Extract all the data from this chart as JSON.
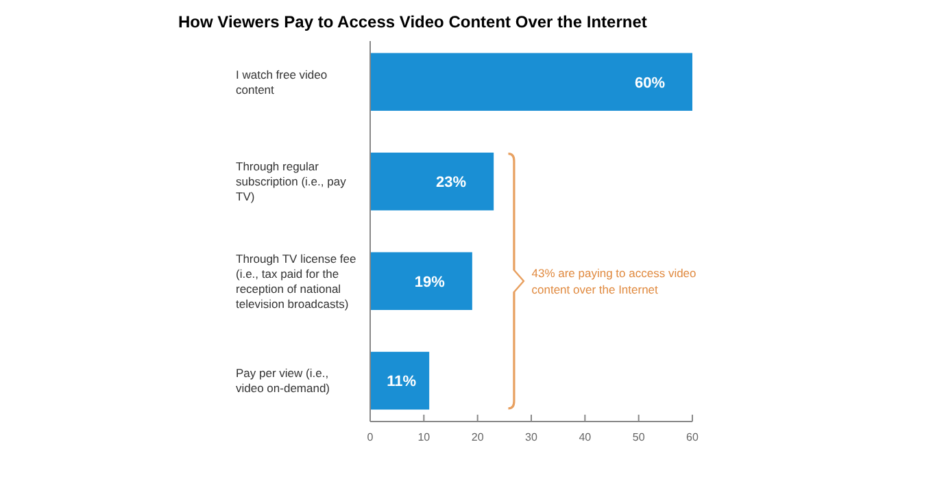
{
  "chart_data": {
    "type": "bar",
    "orientation": "horizontal",
    "title": "How Viewers Pay to Access Video Content Over the Internet",
    "categories": [
      "I watch free video content",
      "Through regular subscription (i.e., pay TV)",
      "Through TV license fee (i.e., tax paid for the reception of national television broadcasts)",
      "Pay per view (i.e., video on-demand)"
    ],
    "values": [
      60,
      23,
      19,
      11
    ],
    "value_labels": [
      "60%",
      "23%",
      "19%",
      "11%"
    ],
    "color": "#1a8fd4",
    "xlim": [
      0,
      60
    ],
    "xticks": [
      0,
      10,
      20,
      30,
      40,
      50,
      60
    ],
    "annotations": [
      "43% are paying to access video content over the Internet"
    ]
  }
}
